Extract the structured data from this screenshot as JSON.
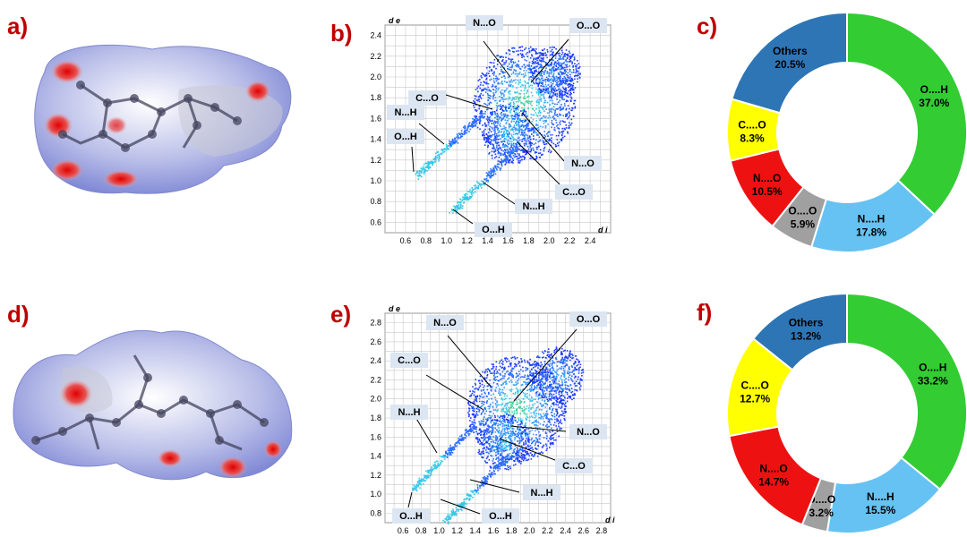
{
  "panels": {
    "a": {
      "label": "a)"
    },
    "b": {
      "label": "b)",
      "y_axis_label": "d e",
      "x_axis_label": "d i",
      "y_ticks": [
        "2.4",
        "2.2",
        "2.0",
        "1.8",
        "1.6",
        "1.4",
        "1.2",
        "1.0",
        "0.8",
        "0.6"
      ],
      "x_ticks": [
        "0.6",
        "0.8",
        "1.0",
        "1.2",
        "1.4",
        "1.6",
        "1.8",
        "2.0",
        "2.2",
        "2.4"
      ],
      "callouts": [
        "N...O",
        "O...O",
        "C...O",
        "N...H",
        "O...H",
        "N...O",
        "C...O",
        "N...H",
        "O...H"
      ]
    },
    "c": {
      "label": "c)"
    },
    "d": {
      "label": "d)"
    },
    "e": {
      "label": "e)",
      "y_axis_label": "d e",
      "x_axis_label": "d i",
      "y_ticks": [
        "2.8",
        "2.6",
        "2.4",
        "2.2",
        "2.0",
        "1.8",
        "1.6",
        "1.4",
        "1.2",
        "1.0",
        "0.8"
      ],
      "x_ticks": [
        "0.6",
        "0.8",
        "1.0",
        "1.2",
        "1.4",
        "1.6",
        "1.8",
        "2.0",
        "2.2",
        "2.4",
        "2.6",
        "2.8"
      ],
      "callouts": [
        "N...O",
        "O...O",
        "C...O",
        "N...H",
        "N...O",
        "C...O",
        "N...H",
        "O...H",
        "O...H"
      ]
    },
    "f": {
      "label": "f)"
    }
  },
  "chart_data": [
    {
      "type": "pie",
      "donut": true,
      "categories": [
        "O....H",
        "N....H",
        "O....O",
        "N....O",
        "C....O",
        "Others"
      ],
      "values": [
        37.0,
        17.8,
        5.9,
        10.5,
        8.3,
        20.5
      ],
      "value_labels": [
        "37.0%",
        "17.8%",
        "5.9%",
        "10.5%",
        "8.3%",
        "20.5%"
      ],
      "colors": [
        "#33cc33",
        "#66c2f2",
        "#a0a0a0",
        "#ee1111",
        "#ffff00",
        "#2e75b6"
      ]
    },
    {
      "type": "pie",
      "donut": true,
      "categories": [
        "O....H",
        "N....H",
        "O....O",
        "N....O",
        "C....O",
        "Others"
      ],
      "values": [
        33.2,
        15.5,
        3.2,
        14.7,
        12.7,
        13.2
      ],
      "value_labels": [
        "33.2%",
        "15.5%",
        "3.2%",
        "14.7%",
        "12.7%",
        "13.2%"
      ],
      "colors": [
        "#33cc33",
        "#66c2f2",
        "#a0a0a0",
        "#ee1111",
        "#ffff00",
        "#2e75b6"
      ]
    }
  ]
}
